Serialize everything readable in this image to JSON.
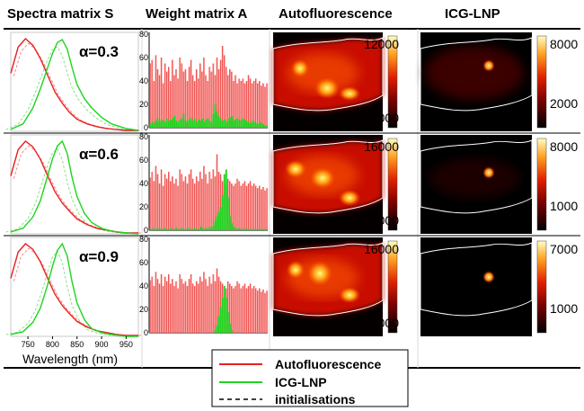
{
  "headers": [
    "Spectra matrix S",
    "Weight matrix A",
    "Autofluorescence",
    "ICG-LNP"
  ],
  "colors": {
    "autofluorescence": "#e8201f",
    "icg": "#1ed41e",
    "init": "#000000",
    "autofluorescence_light": "#f9a3a0"
  },
  "xlabel": "Wavelength (nm)",
  "legend": [
    "Autofluorescence",
    "ICG-LNP",
    "initialisations"
  ],
  "chart_data": [
    {
      "type": "line",
      "panel": "spectra",
      "xticks": [
        750,
        800,
        850,
        900,
        950
      ],
      "xlim": [
        715,
        975
      ],
      "rows": [
        {
          "alpha": "α=0.3",
          "series": [
            {
              "name": "Autofluorescence",
              "x": [
                715,
                730,
                745,
                760,
                775,
                790,
                805,
                820,
                835,
                850,
                870,
                890,
                910,
                930,
                950,
                975
              ],
              "y": [
                0.62,
                0.9,
                0.99,
                0.92,
                0.78,
                0.6,
                0.42,
                0.3,
                0.2,
                0.13,
                0.08,
                0.05,
                0.03,
                0.02,
                0.01,
                0.01
              ]
            },
            {
              "name": "ICG-LNP",
              "x": [
                715,
                740,
                760,
                775,
                790,
                800,
                810,
                820,
                830,
                840,
                850,
                865,
                880,
                900,
                920,
                950,
                975
              ],
              "y": [
                0.02,
                0.08,
                0.25,
                0.45,
                0.68,
                0.83,
                0.95,
                0.98,
                0.88,
                0.68,
                0.5,
                0.35,
                0.25,
                0.15,
                0.08,
                0.03,
                0.01
              ]
            }
          ]
        },
        {
          "alpha": "α=0.6",
          "series": [
            {
              "name": "Autofluorescence",
              "x": [
                715,
                730,
                745,
                760,
                775,
                790,
                805,
                820,
                835,
                850,
                870,
                890,
                910,
                930,
                950,
                975
              ],
              "y": [
                0.62,
                0.9,
                0.99,
                0.93,
                0.8,
                0.62,
                0.45,
                0.33,
                0.24,
                0.16,
                0.1,
                0.06,
                0.04,
                0.02,
                0.01,
                0.01
              ]
            },
            {
              "name": "ICG-LNP",
              "x": [
                715,
                740,
                760,
                775,
                790,
                800,
                810,
                820,
                830,
                840,
                850,
                865,
                880,
                900,
                920,
                950,
                975
              ],
              "y": [
                0.02,
                0.06,
                0.18,
                0.35,
                0.62,
                0.8,
                0.94,
                0.99,
                0.86,
                0.6,
                0.4,
                0.22,
                0.12,
                0.06,
                0.03,
                0.01,
                0.0
              ]
            }
          ]
        },
        {
          "alpha": "α=0.9",
          "series": [
            {
              "name": "Autofluorescence",
              "x": [
                715,
                730,
                745,
                760,
                775,
                790,
                805,
                820,
                835,
                850,
                870,
                890,
                910,
                930,
                950,
                975
              ],
              "y": [
                0.62,
                0.9,
                0.99,
                0.93,
                0.8,
                0.62,
                0.45,
                0.33,
                0.24,
                0.16,
                0.1,
                0.06,
                0.04,
                0.02,
                0.01,
                0.01
              ]
            },
            {
              "name": "ICG-LNP",
              "x": [
                715,
                740,
                760,
                775,
                790,
                800,
                810,
                820,
                830,
                840,
                850,
                865,
                880,
                900,
                920,
                950,
                975
              ],
              "y": [
                0.02,
                0.05,
                0.15,
                0.3,
                0.55,
                0.75,
                0.92,
                0.99,
                0.86,
                0.58,
                0.36,
                0.18,
                0.08,
                0.04,
                0.02,
                0.0,
                0.0
              ]
            }
          ]
        }
      ]
    },
    {
      "type": "bar",
      "panel": "weights",
      "yticks": [
        0,
        20,
        40,
        60,
        80
      ],
      "ylim": [
        0,
        80
      ],
      "bin_count": 64,
      "rows": [
        {
          "autofluorescence": [
            55,
            58,
            40,
            62,
            50,
            45,
            60,
            38,
            55,
            48,
            52,
            40,
            58,
            45,
            50,
            42,
            60,
            55,
            48,
            50,
            40,
            52,
            58,
            45,
            40,
            50,
            42,
            55,
            48,
            60,
            45,
            40,
            52,
            48,
            55,
            45,
            60,
            50,
            58,
            70,
            62,
            52,
            45,
            50,
            48,
            40,
            45,
            38,
            42,
            40,
            42,
            38,
            40,
            45,
            42,
            38,
            40,
            42,
            38,
            40,
            36,
            38,
            35,
            38
          ],
          "icg": [
            3,
            5,
            4,
            6,
            8,
            5,
            7,
            6,
            5,
            8,
            6,
            7,
            8,
            10,
            6,
            5,
            7,
            8,
            12,
            6,
            5,
            7,
            9,
            6,
            8,
            5,
            7,
            6,
            8,
            5,
            7,
            8,
            6,
            5,
            12,
            20,
            14,
            10,
            8,
            6,
            7,
            5,
            8,
            9,
            10,
            6,
            7,
            8,
            7,
            6,
            8,
            7,
            6,
            5,
            4,
            6,
            5,
            4,
            3,
            5,
            4,
            3,
            2,
            2
          ]
        },
        {
          "autofluorescence": [
            45,
            50,
            42,
            55,
            48,
            40,
            52,
            38,
            48,
            44,
            50,
            42,
            46,
            40,
            44,
            38,
            52,
            48,
            42,
            46,
            40,
            48,
            52,
            44,
            40,
            46,
            42,
            50,
            44,
            55,
            48,
            40,
            50,
            44,
            52,
            46,
            65,
            50,
            48,
            42,
            40,
            38,
            44,
            42,
            40,
            38,
            40,
            44,
            42,
            38,
            40,
            42,
            38,
            40,
            42,
            38,
            40,
            38,
            36,
            38,
            35,
            37,
            34,
            36
          ],
          "icg": [
            1,
            1,
            2,
            1,
            1,
            2,
            1,
            1,
            2,
            1,
            1,
            2,
            1,
            1,
            2,
            1,
            1,
            2,
            1,
            1,
            1,
            2,
            1,
            1,
            2,
            1,
            1,
            3,
            2,
            1,
            2,
            1,
            3,
            2,
            4,
            8,
            12,
            16,
            20,
            30,
            48,
            52,
            28,
            12,
            6,
            3,
            2,
            1,
            2,
            1,
            1,
            1,
            2,
            1,
            1,
            1,
            1,
            1,
            1,
            1,
            1,
            1,
            1,
            1
          ]
        },
        {
          "autofluorescence": [
            45,
            48,
            40,
            52,
            46,
            42,
            50,
            40,
            48,
            44,
            50,
            42,
            46,
            40,
            44,
            38,
            50,
            46,
            42,
            44,
            40,
            46,
            50,
            42,
            40,
            44,
            42,
            48,
            44,
            52,
            46,
            40,
            48,
            42,
            50,
            44,
            55,
            48,
            44,
            42,
            40,
            38,
            44,
            42,
            40,
            38,
            40,
            44,
            42,
            38,
            40,
            42,
            38,
            40,
            42,
            38,
            40,
            38,
            36,
            38,
            35,
            37,
            34,
            36
          ],
          "icg": [
            0,
            0,
            0,
            0,
            0,
            0,
            0,
            0,
            0,
            0,
            0,
            0,
            0,
            0,
            0,
            0,
            0,
            0,
            0,
            0,
            0,
            0,
            0,
            0,
            0,
            0,
            0,
            0,
            0,
            0,
            0,
            0,
            0,
            0,
            0,
            2,
            6,
            14,
            22,
            30,
            40,
            30,
            18,
            8,
            2,
            0,
            0,
            0,
            0,
            0,
            0,
            0,
            0,
            0,
            0,
            0,
            0,
            0,
            0,
            0,
            0,
            0,
            0,
            0
          ]
        }
      ]
    },
    {
      "type": "heatmap",
      "panel": "autofluorescence",
      "rows": [
        {
          "colorbar_ticks": [
            "12000",
            "2000"
          ]
        },
        {
          "colorbar_ticks": [
            "16000",
            "2000"
          ]
        },
        {
          "colorbar_ticks": [
            "16000",
            "2000"
          ]
        }
      ]
    },
    {
      "type": "heatmap",
      "panel": "icg",
      "rows": [
        {
          "colorbar_ticks": [
            "8000",
            "2000"
          ]
        },
        {
          "colorbar_ticks": [
            "8000",
            "1000"
          ]
        },
        {
          "colorbar_ticks": [
            "7000",
            "1000"
          ]
        }
      ]
    }
  ]
}
